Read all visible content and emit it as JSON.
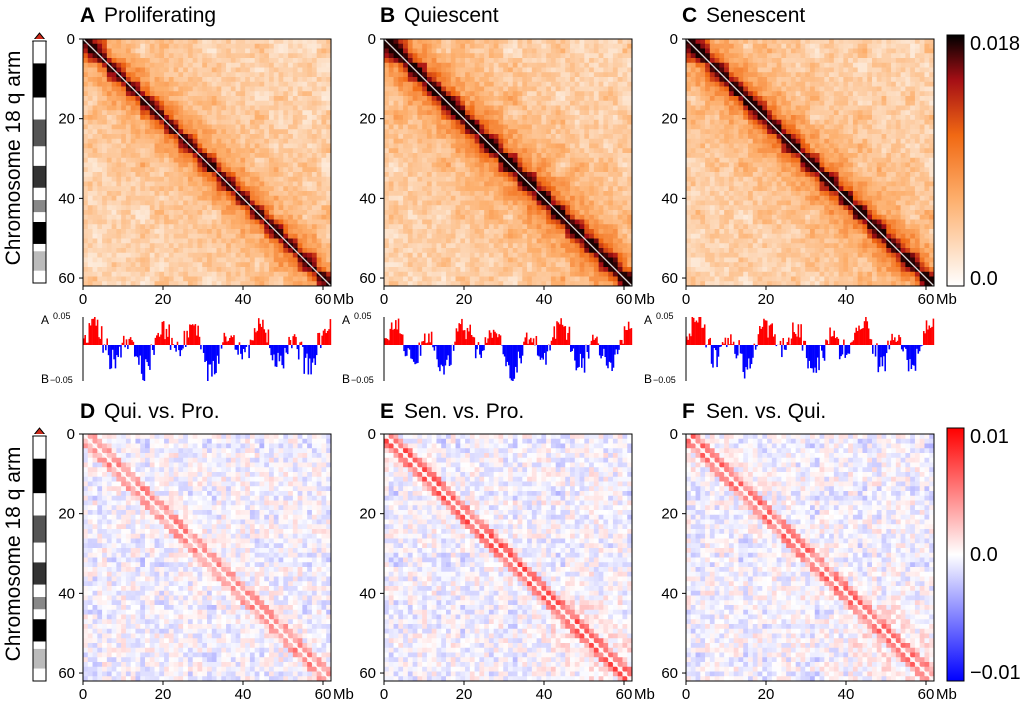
{
  "figure": {
    "chromosome_label": "Chromosome 18 q arm",
    "panels": [
      {
        "id": "A",
        "letter": "A",
        "title": "Proliferating",
        "kind": "contact",
        "sample": "Proliferating"
      },
      {
        "id": "B",
        "letter": "B",
        "title": "Quiescent",
        "kind": "contact",
        "sample": "Quiescent"
      },
      {
        "id": "C",
        "letter": "C",
        "title": "Senescent",
        "kind": "contact",
        "sample": "Senescent"
      },
      {
        "id": "D",
        "letter": "D",
        "title": "Qui. vs. Pro.",
        "kind": "difference",
        "sample": "Qui. vs. Pro."
      },
      {
        "id": "E",
        "letter": "E",
        "title": "Sen. vs. Pro.",
        "kind": "difference",
        "sample": "Sen. vs. Pro."
      },
      {
        "id": "F",
        "letter": "F",
        "title": "Sen. vs. Qui.",
        "kind": "difference",
        "sample": "Sen. vs. Qui."
      }
    ],
    "axis": {
      "ticks": [
        "0",
        "20",
        "40",
        "60"
      ],
      "unit": "Mb",
      "range_mb": [
        0,
        62
      ]
    },
    "colorbar_contact": {
      "max_label": "0.018",
      "min_label": "0.0",
      "range": [
        0.0,
        0.018
      ],
      "colors": [
        "#ffffff",
        "#fdae6b",
        "#f16913",
        "#a50f15",
        "#000000"
      ]
    },
    "colorbar_diff": {
      "max_label": "0.01",
      "mid_label": "0.0",
      "min_label": "−0.01",
      "range": [
        -0.01,
        0.01
      ],
      "colors": [
        "#0000ff",
        "#ffffff",
        "#ff0000"
      ]
    },
    "compartment": {
      "a_label": "A",
      "b_label": "B",
      "top_value": "0.05",
      "bottom_value": "−0.05",
      "range": [
        -0.05,
        0.05
      ],
      "colors": {
        "A": "#ff0000",
        "B": "#0000ff"
      }
    }
  },
  "chart_data": [
    {
      "type": "heatmap",
      "title": "Proliferating",
      "x_range": [
        0,
        62
      ],
      "y_range": [
        0,
        62
      ],
      "unit": "Mb",
      "value_range": [
        0,
        0.018
      ]
    },
    {
      "type": "heatmap",
      "title": "Quiescent",
      "x_range": [
        0,
        62
      ],
      "y_range": [
        0,
        62
      ],
      "unit": "Mb",
      "value_range": [
        0,
        0.018
      ]
    },
    {
      "type": "heatmap",
      "title": "Senescent",
      "x_range": [
        0,
        62
      ],
      "y_range": [
        0,
        62
      ],
      "unit": "Mb",
      "value_range": [
        0,
        0.018
      ]
    },
    {
      "type": "heatmap",
      "title": "Qui. vs. Pro.",
      "x_range": [
        0,
        62
      ],
      "y_range": [
        0,
        62
      ],
      "unit": "Mb",
      "value_range": [
        -0.01,
        0.01
      ]
    },
    {
      "type": "heatmap",
      "title": "Sen. vs. Pro.",
      "x_range": [
        0,
        62
      ],
      "y_range": [
        0,
        62
      ],
      "unit": "Mb",
      "value_range": [
        -0.01,
        0.01
      ]
    },
    {
      "type": "heatmap",
      "title": "Sen. vs. Qui.",
      "x_range": [
        0,
        62
      ],
      "y_range": [
        0,
        62
      ],
      "unit": "Mb",
      "value_range": [
        -0.01,
        0.01
      ]
    }
  ]
}
